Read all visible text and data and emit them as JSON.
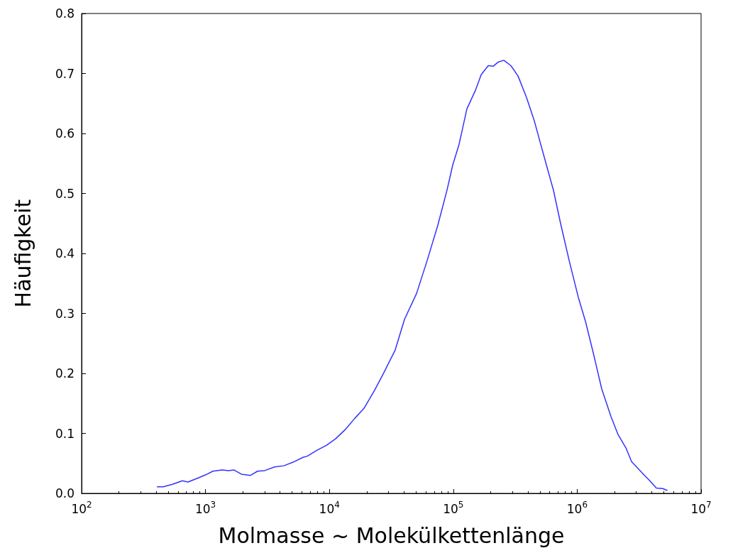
{
  "chart_data": {
    "type": "line",
    "xlabel": "Molmasse ~ Molekülkettenlänge",
    "ylabel": "Häufigkeit",
    "log": "x",
    "grid": false,
    "marker": "none",
    "line_style": "solid",
    "xlim": [
      100,
      10000000
    ],
    "xticks": [
      {
        "value": 100,
        "label": "10$^{2}$"
      },
      {
        "value": 1000,
        "label": "10$^{3}$"
      },
      {
        "value": 10000,
        "label": "10$^{4}$"
      },
      {
        "value": 100000,
        "label": "10$^{5}$"
      },
      {
        "value": 1000000,
        "label": "10$^{6}$"
      },
      {
        "value": 10000000,
        "label": "10$^{7}$"
      }
    ],
    "ylim": [
      0,
      0.8
    ],
    "yticks": [
      {
        "value": 0,
        "label": "0.0"
      },
      0.1,
      0.2,
      0.3,
      0.4,
      0.5,
      0.6,
      0.7,
      0.8
    ],
    "series": [
      {
        "color": "#3333ff",
        "x": [
          408,
          456,
          541,
          650,
          723,
          881,
          1005,
          1148,
          1363,
          1535,
          1703,
          1945,
          2307,
          2630,
          3006,
          3614,
          4290,
          5093,
          6124,
          6625,
          7962,
          9461,
          11220,
          13520,
          16030,
          19050,
          23190,
          27160,
          33970,
          40360,
          50470,
          61520,
          75010,
          89130,
          98900,
          111400,
          128800,
          151000,
          167900,
          191500,
          209900,
          230200,
          255800,
          291800,
          332800,
          389900,
          450800,
          528300,
          644000,
          734600,
          866700,
          1021000,
          1166000,
          1349000,
          1579000,
          1874000,
          2138000,
          2472000,
          2748000,
          3350000,
          3819000,
          4357000,
          4910000,
          5309000
        ],
        "values": [
          0.011,
          0.011,
          0.015,
          0.021,
          0.019,
          0.026,
          0.031,
          0.037,
          0.039,
          0.038,
          0.039,
          0.032,
          0.03,
          0.037,
          0.038,
          0.044,
          0.046,
          0.052,
          0.06,
          0.062,
          0.072,
          0.08,
          0.091,
          0.107,
          0.125,
          0.142,
          0.172,
          0.199,
          0.239,
          0.29,
          0.333,
          0.388,
          0.447,
          0.506,
          0.547,
          0.582,
          0.641,
          0.672,
          0.698,
          0.713,
          0.712,
          0.719,
          0.722,
          0.713,
          0.696,
          0.66,
          0.621,
          0.569,
          0.505,
          0.45,
          0.386,
          0.327,
          0.287,
          0.234,
          0.174,
          0.128,
          0.098,
          0.076,
          0.053,
          0.034,
          0.022,
          0.009,
          0.008,
          0.005
        ]
      }
    ]
  }
}
